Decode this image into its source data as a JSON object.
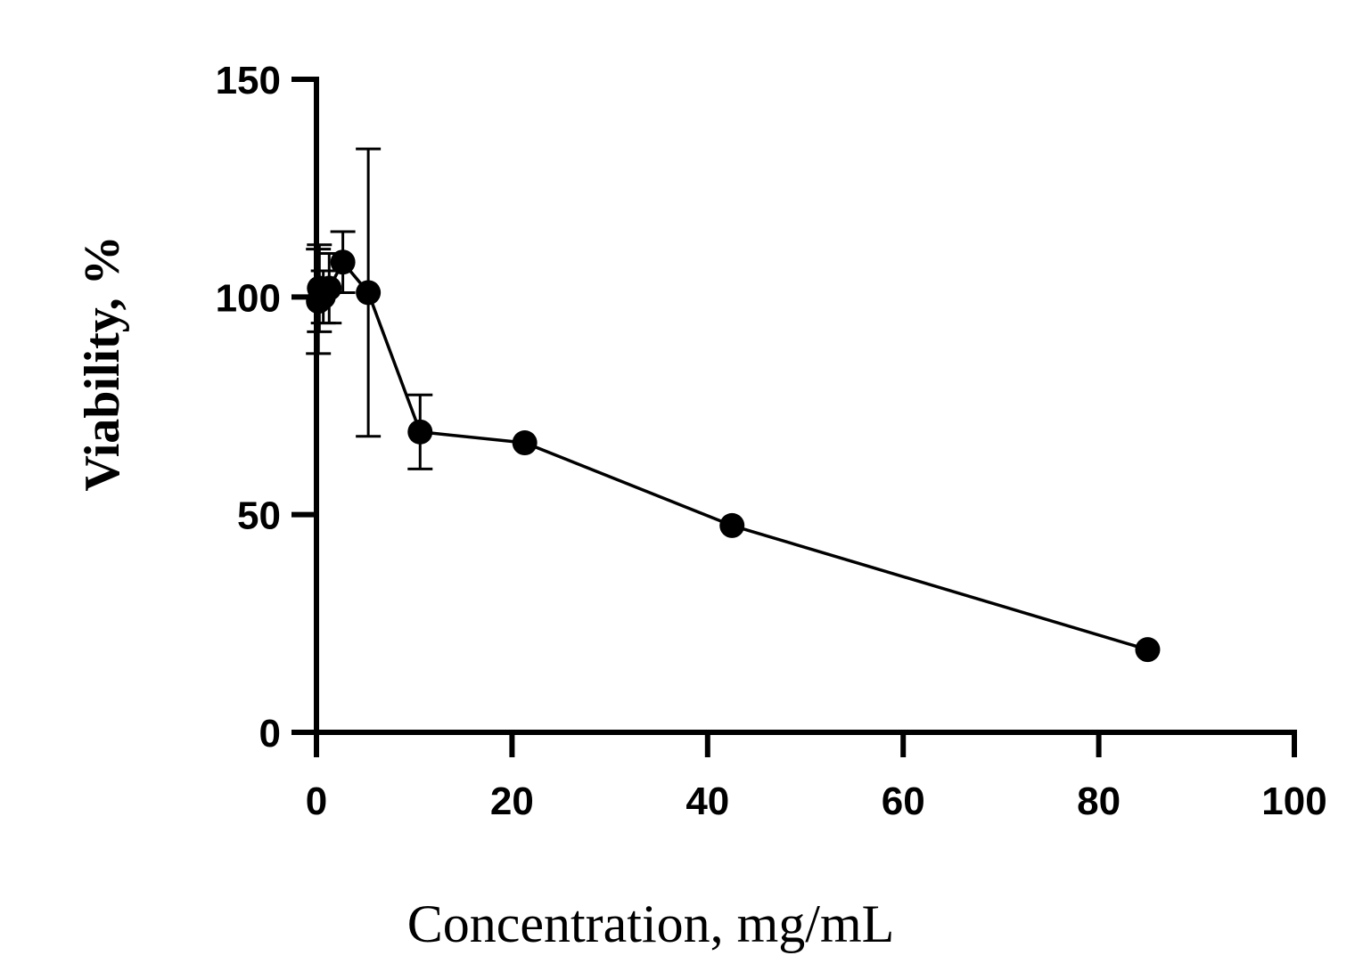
{
  "chart_data": {
    "type": "scatter",
    "xlabel": "Concentration, mg/mL",
    "ylabel": "Viability, %",
    "xlim": [
      0,
      100
    ],
    "ylim": [
      0,
      150
    ],
    "x_ticks": [
      0,
      20,
      40,
      60,
      80,
      100
    ],
    "y_ticks": [
      0,
      50,
      100,
      150
    ],
    "x_tick_labels": [
      "0",
      "20",
      "40",
      "60",
      "80",
      "100"
    ],
    "y_tick_labels": [
      "0",
      "50",
      "100",
      "150"
    ],
    "grid": false,
    "connect_points": true,
    "marker_color": "#000000",
    "line_color": "#000000",
    "series": [
      {
        "points": [
          {
            "x": 0.2,
            "y": 99,
            "err": 12
          },
          {
            "x": 0.3,
            "y": 102,
            "err": 10
          },
          {
            "x": 0.7,
            "y": 100,
            "err": 6
          },
          {
            "x": 1.3,
            "y": 102,
            "err": 8
          },
          {
            "x": 2.7,
            "y": 108,
            "err": 7
          },
          {
            "x": 5.3,
            "y": 101,
            "err": 33
          },
          {
            "x": 10.6,
            "y": 69,
            "err": 8.5
          },
          {
            "x": 21.3,
            "y": 66.5,
            "err": 0
          },
          {
            "x": 42.5,
            "y": 47.5,
            "err": 0
          },
          {
            "x": 85,
            "y": 19,
            "err": 0
          }
        ]
      }
    ]
  }
}
